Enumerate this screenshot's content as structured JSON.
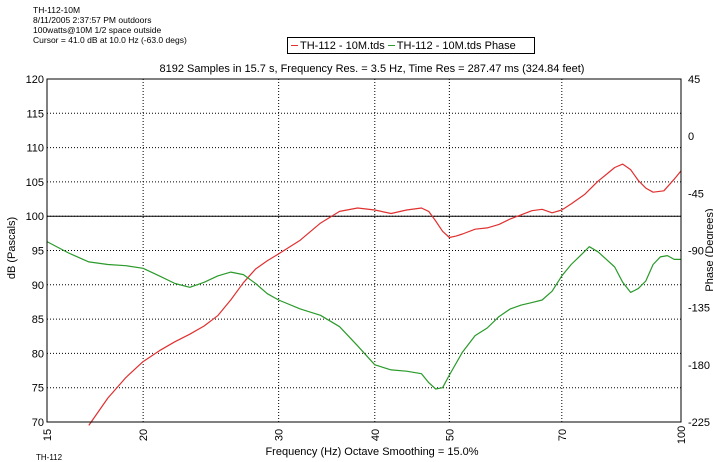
{
  "info_lines": [
    "TH-112-10M",
    "8/11/2005 2:37:57 PM outdoors",
    "100watts@10M 1/2 space outside",
    "Cursor = 41.0 dB at 10.0 Hz (-63.0 degs)"
  ],
  "bottom_fragment": "TH-112",
  "colors": {
    "red": "#e03030",
    "green": "#2a9a2a",
    "grid": "#000000"
  },
  "chart_data": {
    "type": "line",
    "title": "8192 Samples in 15.7 s, Frequency Res. = 3.5 Hz, Time Res = 287.47 ms (324.84 feet)",
    "xlabel": "Frequency (Hz) Octave Smoothing = 15.0%",
    "ylabel": "dB (Pascals)",
    "ylabel_right": "Phase (Degrees)",
    "x_scale": "log",
    "xlim": [
      15,
      100
    ],
    "ylim": [
      70,
      120
    ],
    "ylim_right": [
      -225,
      45
    ],
    "x_ticks": [
      15,
      20,
      30,
      40,
      50,
      70,
      100
    ],
    "y_ticks": [
      70,
      75,
      80,
      85,
      90,
      95,
      100,
      105,
      110,
      115,
      120
    ],
    "y_right_ticks": [
      45,
      0,
      -45,
      -90,
      -135,
      -180,
      -225
    ],
    "grid": true,
    "legend_position": "top-center",
    "series": [
      {
        "name": "TH-112 - 10M.tds",
        "color": "#e03030",
        "axis": "left",
        "x": [
          17.0,
          18,
          19,
          20,
          21,
          22,
          23,
          24,
          25,
          26,
          27,
          28,
          29,
          30,
          32,
          34,
          36,
          38,
          40,
          42,
          44,
          46,
          47,
          48,
          49,
          50,
          51,
          52,
          54,
          56,
          58,
          60,
          62,
          64,
          66,
          68,
          70,
          72,
          75,
          78,
          80,
          82,
          84,
          86,
          88,
          90,
          92,
          95,
          98,
          100
        ],
        "values": [
          69.5,
          73.5,
          76.5,
          78.8,
          80.4,
          81.7,
          82.8,
          84.0,
          85.5,
          87.8,
          90.3,
          92.3,
          93.5,
          94.5,
          96.5,
          99.0,
          100.7,
          101.2,
          100.9,
          100.4,
          100.9,
          101.2,
          100.7,
          99.3,
          97.8,
          96.9,
          97.1,
          97.4,
          98.1,
          98.3,
          98.8,
          99.6,
          100.2,
          100.8,
          101.0,
          100.5,
          100.9,
          101.8,
          103.2,
          105.1,
          106.1,
          107.1,
          107.6,
          106.8,
          105.2,
          104.1,
          103.5,
          103.7,
          105.4,
          106.6
        ]
      },
      {
        "name": "TH-112 - 10M.tds Phase",
        "color": "#2a9a2a",
        "axis": "right",
        "x": [
          15,
          16,
          17,
          18,
          19,
          20,
          21,
          22,
          23,
          24,
          25,
          26,
          27,
          28,
          29,
          30,
          32,
          34,
          36,
          38,
          40,
          42,
          44,
          46,
          47,
          48,
          49,
          50,
          52,
          54,
          56,
          58,
          60,
          62,
          64,
          66,
          68,
          70,
          72,
          74,
          76,
          78,
          80,
          82,
          84,
          86,
          88,
          90,
          92,
          94,
          96,
          98,
          100
        ],
        "values": [
          -83,
          -92,
          -99,
          -101,
          -102,
          -104,
          -110,
          -116,
          -119,
          -115,
          -110,
          -107,
          -109,
          -116,
          -124,
          -129,
          -136,
          -141,
          -150,
          -165,
          -180,
          -184,
          -185,
          -187,
          -194,
          -199,
          -198,
          -188,
          -170,
          -157,
          -151,
          -142,
          -136,
          -133,
          -131,
          -129,
          -122,
          -110,
          -101,
          -94,
          -87,
          -91,
          -97,
          -103,
          -115,
          -123,
          -120,
          -114,
          -101,
          -95,
          -94,
          -97,
          -97
        ]
      }
    ]
  }
}
